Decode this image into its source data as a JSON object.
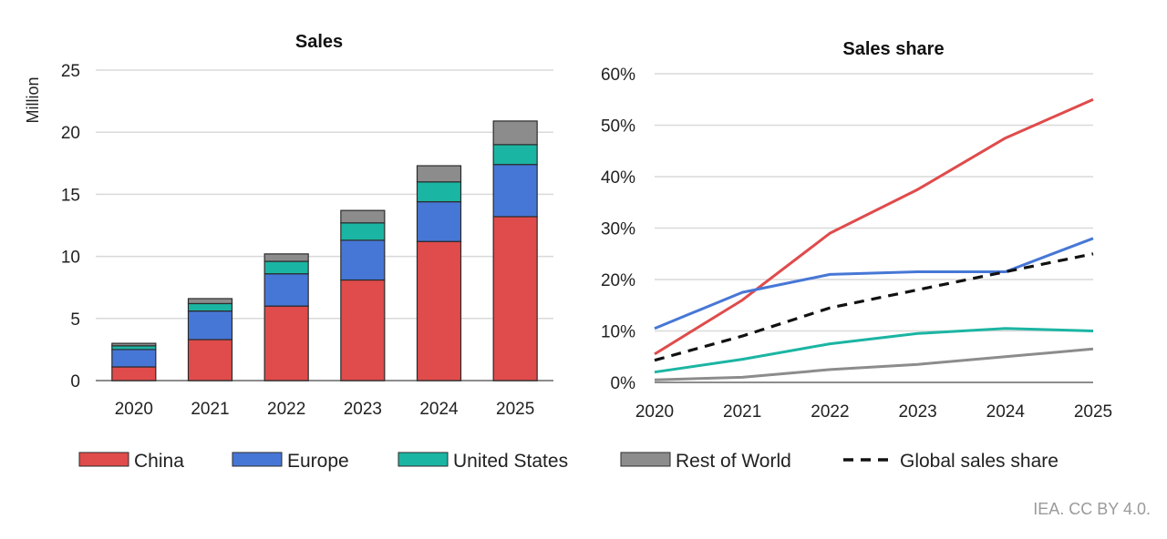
{
  "colors": {
    "China": "#e04b4b",
    "Europe": "#4777d6",
    "United States": "#1bb5a3",
    "Rest of World": "#8c8c8c",
    "Global sales share": "#111111"
  },
  "credit": "IEA. CC BY 4.0.",
  "legend": [
    {
      "label": "China",
      "type": "box"
    },
    {
      "label": "Europe",
      "type": "box"
    },
    {
      "label": "United States",
      "type": "box"
    },
    {
      "label": "Rest of World",
      "type": "box"
    },
    {
      "label": "Global sales share",
      "type": "dash"
    }
  ],
  "chart_data": [
    {
      "type": "bar",
      "stacked": true,
      "title": "Sales",
      "xlabel": "",
      "ylabel": "Million",
      "categories": [
        "2020",
        "2021",
        "2022",
        "2023",
        "2024",
        "2025"
      ],
      "ylim": [
        0,
        25
      ],
      "yticks": [
        0,
        5,
        10,
        15,
        20,
        25
      ],
      "grid": true,
      "series": [
        {
          "name": "China",
          "values": [
            1.1,
            3.3,
            6.0,
            8.1,
            11.2,
            13.2
          ]
        },
        {
          "name": "Europe",
          "values": [
            1.4,
            2.3,
            2.6,
            3.2,
            3.2,
            4.2
          ]
        },
        {
          "name": "United States",
          "values": [
            0.3,
            0.6,
            1.0,
            1.4,
            1.6,
            1.6
          ]
        },
        {
          "name": "Rest of World",
          "values": [
            0.2,
            0.4,
            0.6,
            1.0,
            1.3,
            1.9
          ]
        }
      ]
    },
    {
      "type": "line",
      "title": "Sales share",
      "xlabel": "",
      "ylabel": "",
      "x": [
        "2020",
        "2021",
        "2022",
        "2023",
        "2024",
        "2025"
      ],
      "ylim": [
        0,
        60
      ],
      "yticks": [
        "0%",
        "10%",
        "20%",
        "30%",
        "40%",
        "50%",
        "60%"
      ],
      "grid": true,
      "series": [
        {
          "name": "China",
          "values": [
            5.5,
            16,
            29,
            37.5,
            47.5,
            55
          ]
        },
        {
          "name": "Europe",
          "values": [
            10.5,
            17.5,
            21,
            21.5,
            21.5,
            28
          ]
        },
        {
          "name": "United States",
          "values": [
            2,
            4.5,
            7.5,
            9.5,
            10.5,
            10
          ]
        },
        {
          "name": "Rest of World",
          "values": [
            0.5,
            1,
            2.5,
            3.5,
            5,
            6.5
          ]
        },
        {
          "name": "Global sales share",
          "values": [
            4.3,
            9,
            14.5,
            18,
            21.5,
            25
          ],
          "dashed": true
        }
      ]
    }
  ]
}
